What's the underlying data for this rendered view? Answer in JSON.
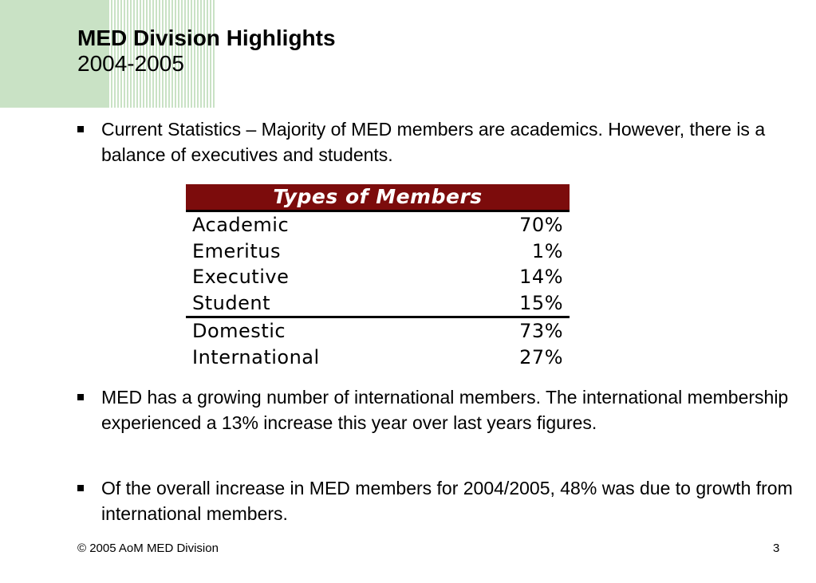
{
  "slide": {
    "title": "MED Division Highlights",
    "subtitle": "2004-2005",
    "bullets": [
      "Current Statistics –  Majority of MED members are academics. However, there is a balance of executives and students.",
      "MED has a growing number of international members. The international membership experienced a 13% increase this year over last years figures.",
      "Of the overall increase in MED members for 2004/2005, 48% was due to growth from international members."
    ]
  },
  "table": {
    "header": "Types of Members",
    "group1": [
      {
        "label": "Academic",
        "value": "70%"
      },
      {
        "label": "Emeritus",
        "value": "1%"
      },
      {
        "label": "Executive",
        "value": "14%"
      },
      {
        "label": "Student",
        "value": "15%"
      }
    ],
    "group2": [
      {
        "label": "Domestic",
        "value": "73%"
      },
      {
        "label": "International",
        "value": "27%"
      }
    ]
  },
  "footer": {
    "copyright": "© 2005 AoM MED Division",
    "page_number": "3"
  },
  "colors": {
    "accent_green": "#c9e2c5",
    "table_header": "#7c0c0c"
  }
}
